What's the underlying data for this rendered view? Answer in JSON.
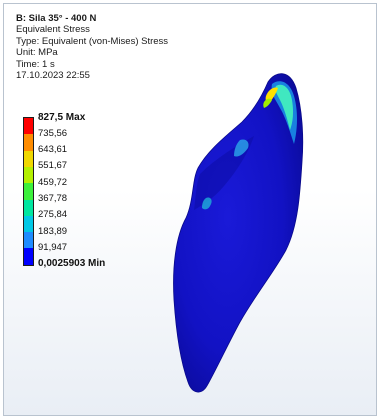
{
  "result_info": {
    "title": "B: Sila 35° - 400 N",
    "result_name": "Equivalent Stress",
    "type_line": "Type: Equivalent (von-Mises) Stress",
    "unit_line": "Unit: MPa",
    "time_line": "Time: 1 s",
    "timestamp": "17.10.2023 22:55"
  },
  "legend": {
    "max_label": "827,5 Max",
    "values": [
      "735,56",
      "643,61",
      "551,67",
      "459,72",
      "367,78",
      "275,84",
      "183,89",
      "91,947"
    ],
    "min_label": "0,0025903 Min",
    "colors": [
      "#ff0000",
      "#ff8c00",
      "#f0d800",
      "#b4f000",
      "#3cf03c",
      "#00e6a0",
      "#00c8e6",
      "#1e8cff",
      "#0000ff"
    ]
  },
  "model": {
    "base_color": "#1010c8",
    "hotspot_colors": [
      "#ffe000",
      "#a0f000",
      "#40e8c0",
      "#00b0f0"
    ]
  }
}
